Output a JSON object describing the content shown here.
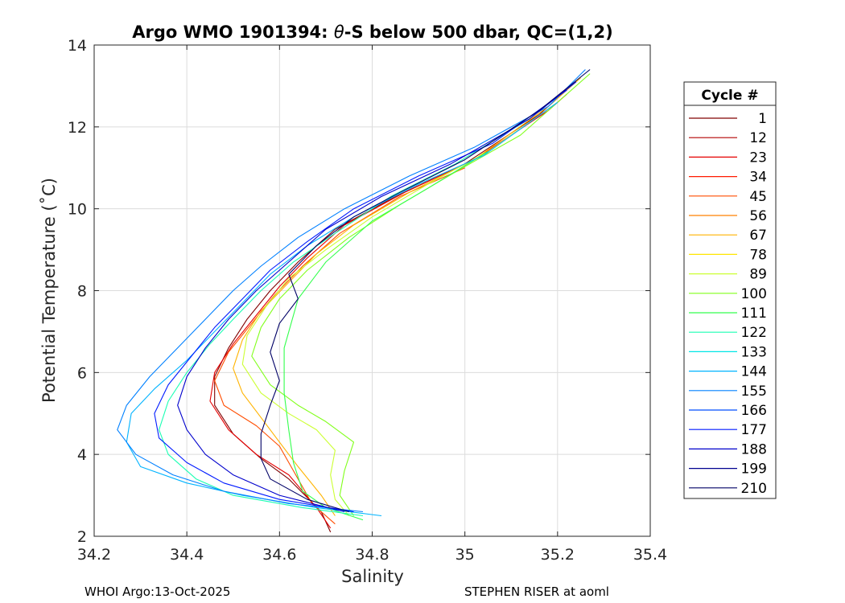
{
  "chart_data": {
    "type": "line",
    "title_prefix": "Argo WMO 1901394: ",
    "title_symbol": "θ",
    "title_suffix": "-S below 500 dbar,  QC=(1,2)",
    "xlabel": "Salinity",
    "ylabel": "Potential Temperature (˚C)",
    "xlim": [
      34.2,
      35.4
    ],
    "ylim": [
      2,
      14
    ],
    "xticks": [
      "34.2",
      "34.4",
      "34.6",
      "34.8",
      "35",
      "35.2",
      "35.4"
    ],
    "yticks": [
      "2",
      "4",
      "6",
      "8",
      "10",
      "12",
      "14"
    ],
    "grid": true,
    "legend": {
      "title": "Cycle #",
      "placement": "right-outside",
      "entries": [
        {
          "label": "1",
          "color": "#800000"
        },
        {
          "label": "12",
          "color": "#b20000"
        },
        {
          "label": "23",
          "color": "#e60000"
        },
        {
          "label": "34",
          "color": "#ff1a00"
        },
        {
          "label": "45",
          "color": "#ff4d00"
        },
        {
          "label": "56",
          "color": "#ff8000"
        },
        {
          "label": "67",
          "color": "#ffb300"
        },
        {
          "label": "78",
          "color": "#ffe600"
        },
        {
          "label": "89",
          "color": "#ccff33"
        },
        {
          "label": "100",
          "color": "#80ff1a"
        },
        {
          "label": "111",
          "color": "#33ff4d"
        },
        {
          "label": "122",
          "color": "#1affb3"
        },
        {
          "label": "133",
          "color": "#00e6e6"
        },
        {
          "label": "144",
          "color": "#00b3ff"
        },
        {
          "label": "155",
          "color": "#0080ff"
        },
        {
          "label": "166",
          "color": "#004dff"
        },
        {
          "label": "177",
          "color": "#001aff"
        },
        {
          "label": "188",
          "color": "#0000cc"
        },
        {
          "label": "199",
          "color": "#00008f"
        },
        {
          "label": "210",
          "color": "#000066"
        }
      ]
    },
    "series": [
      {
        "color": "#800000",
        "points": [
          [
            34.71,
            2.1
          ],
          [
            34.69,
            2.6
          ],
          [
            34.62,
            3.4
          ],
          [
            34.56,
            3.9
          ],
          [
            34.5,
            4.5
          ],
          [
            34.46,
            5.2
          ],
          [
            34.46,
            5.9
          ],
          [
            34.49,
            6.6
          ],
          [
            34.53,
            7.3
          ],
          [
            34.58,
            8.0
          ],
          [
            34.64,
            8.7
          ],
          [
            34.72,
            9.5
          ],
          [
            34.85,
            10.3
          ],
          [
            35.0,
            11.1
          ],
          [
            35.16,
            12.3
          ],
          [
            35.22,
            12.9
          ]
        ]
      },
      {
        "color": "#e60000",
        "points": [
          [
            34.71,
            2.2
          ],
          [
            34.68,
            2.7
          ],
          [
            34.62,
            3.5
          ],
          [
            34.55,
            4.0
          ],
          [
            34.49,
            4.6
          ],
          [
            34.45,
            5.3
          ],
          [
            34.46,
            6.0
          ],
          [
            34.5,
            6.7
          ],
          [
            34.55,
            7.4
          ],
          [
            34.6,
            8.1
          ],
          [
            34.66,
            8.8
          ],
          [
            34.74,
            9.6
          ],
          [
            34.87,
            10.4
          ],
          [
            35.02,
            11.2
          ],
          [
            35.18,
            12.4
          ],
          [
            35.22,
            12.8
          ]
        ]
      },
      {
        "color": "#ff4d00",
        "points": [
          [
            34.72,
            2.3
          ],
          [
            34.67,
            2.8
          ],
          [
            34.63,
            3.6
          ],
          [
            34.6,
            4.2
          ],
          [
            34.55,
            4.7
          ],
          [
            34.48,
            5.2
          ],
          [
            34.46,
            5.8
          ],
          [
            34.49,
            6.5
          ],
          [
            34.54,
            7.2
          ],
          [
            34.59,
            7.9
          ],
          [
            34.65,
            8.6
          ],
          [
            34.73,
            9.4
          ],
          [
            34.86,
            10.3
          ],
          [
            35.0,
            11.0
          ]
        ]
      },
      {
        "color": "#ffb300",
        "points": [
          [
            34.72,
            2.5
          ],
          [
            34.69,
            3.0
          ],
          [
            34.64,
            3.7
          ],
          [
            34.6,
            4.3
          ],
          [
            34.56,
            4.9
          ],
          [
            34.52,
            5.5
          ],
          [
            34.5,
            6.1
          ],
          [
            34.52,
            6.8
          ],
          [
            34.56,
            7.5
          ],
          [
            34.62,
            8.2
          ],
          [
            34.68,
            8.9
          ],
          [
            34.76,
            9.6
          ],
          [
            34.88,
            10.4
          ],
          [
            35.02,
            11.2
          ],
          [
            35.18,
            12.5
          ],
          [
            35.25,
            13.2
          ]
        ]
      },
      {
        "color": "#ccff33",
        "points": [
          [
            34.75,
            2.5
          ],
          [
            34.72,
            2.9
          ],
          [
            34.71,
            3.5
          ],
          [
            34.72,
            4.1
          ],
          [
            34.68,
            4.6
          ],
          [
            34.62,
            5.0
          ],
          [
            34.56,
            5.5
          ],
          [
            34.52,
            6.2
          ],
          [
            34.53,
            6.9
          ],
          [
            34.57,
            7.6
          ],
          [
            34.62,
            8.3
          ],
          [
            34.7,
            9.0
          ],
          [
            34.8,
            9.8
          ],
          [
            34.92,
            10.6
          ],
          [
            35.05,
            11.4
          ],
          [
            35.2,
            12.6
          ]
        ]
      },
      {
        "color": "#80ff1a",
        "points": [
          [
            34.76,
            2.5
          ],
          [
            34.73,
            3.0
          ],
          [
            34.74,
            3.6
          ],
          [
            34.76,
            4.3
          ],
          [
            34.7,
            4.8
          ],
          [
            34.64,
            5.2
          ],
          [
            34.58,
            5.7
          ],
          [
            34.54,
            6.4
          ],
          [
            34.56,
            7.1
          ],
          [
            34.6,
            7.8
          ],
          [
            34.66,
            8.5
          ],
          [
            34.75,
            9.3
          ],
          [
            34.86,
            10.1
          ],
          [
            34.98,
            10.9
          ],
          [
            35.12,
            11.8
          ],
          [
            35.27,
            13.3
          ]
        ]
      },
      {
        "color": "#33ff4d",
        "points": [
          [
            34.78,
            2.4
          ],
          [
            34.7,
            2.7
          ],
          [
            34.65,
            3.1
          ],
          [
            34.63,
            3.8
          ],
          [
            34.62,
            4.6
          ],
          [
            34.61,
            5.5
          ],
          [
            34.61,
            6.6
          ],
          [
            34.64,
            7.8
          ],
          [
            34.7,
            8.7
          ],
          [
            34.8,
            9.7
          ],
          [
            34.92,
            10.5
          ],
          [
            35.05,
            11.4
          ]
        ]
      },
      {
        "color": "#1affb3",
        "points": [
          [
            34.78,
            2.5
          ],
          [
            34.65,
            2.7
          ],
          [
            34.5,
            3.0
          ],
          [
            34.42,
            3.4
          ],
          [
            34.36,
            4.0
          ],
          [
            34.34,
            4.6
          ],
          [
            34.36,
            5.3
          ],
          [
            34.4,
            6.0
          ],
          [
            34.45,
            6.7
          ],
          [
            34.5,
            7.3
          ],
          [
            34.56,
            8.0
          ],
          [
            34.63,
            8.7
          ],
          [
            34.72,
            9.4
          ],
          [
            34.84,
            10.3
          ],
          [
            34.98,
            11.1
          ],
          [
            35.14,
            12.2
          ]
        ]
      },
      {
        "color": "#00b3ff",
        "points": [
          [
            34.82,
            2.5
          ],
          [
            34.68,
            2.7
          ],
          [
            34.52,
            3.0
          ],
          [
            34.4,
            3.3
          ],
          [
            34.3,
            3.7
          ],
          [
            34.27,
            4.3
          ],
          [
            34.28,
            5.0
          ],
          [
            34.33,
            5.6
          ],
          [
            34.4,
            6.3
          ],
          [
            34.46,
            7.0
          ],
          [
            34.52,
            7.7
          ],
          [
            34.58,
            8.4
          ],
          [
            34.66,
            9.1
          ],
          [
            34.76,
            9.8
          ],
          [
            34.9,
            10.6
          ],
          [
            35.04,
            11.3
          ],
          [
            35.2,
            12.6
          ]
        ]
      },
      {
        "color": "#0080ff",
        "points": [
          [
            34.78,
            2.6
          ],
          [
            34.62,
            2.8
          ],
          [
            34.48,
            3.1
          ],
          [
            34.37,
            3.5
          ],
          [
            34.29,
            4.0
          ],
          [
            34.25,
            4.6
          ],
          [
            34.27,
            5.2
          ],
          [
            34.32,
            5.9
          ],
          [
            34.38,
            6.6
          ],
          [
            34.44,
            7.3
          ],
          [
            34.5,
            8.0
          ],
          [
            34.56,
            8.6
          ],
          [
            34.64,
            9.3
          ],
          [
            34.74,
            10.0
          ],
          [
            34.88,
            10.8
          ],
          [
            35.02,
            11.5
          ],
          [
            35.18,
            12.5
          ],
          [
            35.26,
            13.4
          ]
        ]
      },
      {
        "color": "#001aff",
        "points": [
          [
            34.76,
            2.6
          ],
          [
            34.6,
            2.9
          ],
          [
            34.48,
            3.3
          ],
          [
            34.4,
            3.8
          ],
          [
            34.34,
            4.4
          ],
          [
            34.33,
            5.0
          ],
          [
            34.36,
            5.7
          ],
          [
            34.41,
            6.4
          ],
          [
            34.46,
            7.1
          ],
          [
            34.52,
            7.8
          ],
          [
            34.58,
            8.5
          ],
          [
            34.66,
            9.2
          ],
          [
            34.76,
            10.0
          ],
          [
            34.9,
            10.8
          ],
          [
            35.06,
            11.6
          ],
          [
            35.22,
            12.9
          ]
        ]
      },
      {
        "color": "#0000cc",
        "points": [
          [
            34.74,
            2.6
          ],
          [
            34.6,
            3.0
          ],
          [
            34.5,
            3.5
          ],
          [
            34.44,
            4.0
          ],
          [
            34.4,
            4.6
          ],
          [
            34.38,
            5.2
          ],
          [
            34.4,
            5.9
          ],
          [
            34.44,
            6.6
          ],
          [
            34.49,
            7.3
          ],
          [
            34.55,
            8.0
          ],
          [
            34.62,
            8.7
          ],
          [
            34.7,
            9.5
          ],
          [
            34.82,
            10.3
          ],
          [
            34.97,
            11.1
          ],
          [
            35.14,
            12.2
          ],
          [
            35.24,
            13.1
          ]
        ]
      },
      {
        "color": "#000066",
        "points": [
          [
            34.75,
            2.6
          ],
          [
            34.66,
            2.9
          ],
          [
            34.58,
            3.4
          ],
          [
            34.56,
            3.9
          ],
          [
            34.56,
            4.5
          ],
          [
            34.58,
            5.2
          ],
          [
            34.6,
            5.8
          ],
          [
            34.58,
            6.5
          ],
          [
            34.6,
            7.2
          ],
          [
            34.64,
            7.8
          ],
          [
            34.62,
            8.4
          ],
          [
            34.68,
            9.1
          ],
          [
            34.76,
            9.8
          ],
          [
            34.86,
            10.4
          ],
          [
            35.0,
            11.2
          ],
          [
            35.16,
            12.4
          ],
          [
            35.27,
            13.4
          ]
        ]
      }
    ]
  },
  "footer": {
    "left": "WHOI Argo:13-Oct-2025",
    "right": "STEPHEN RISER at aoml"
  }
}
